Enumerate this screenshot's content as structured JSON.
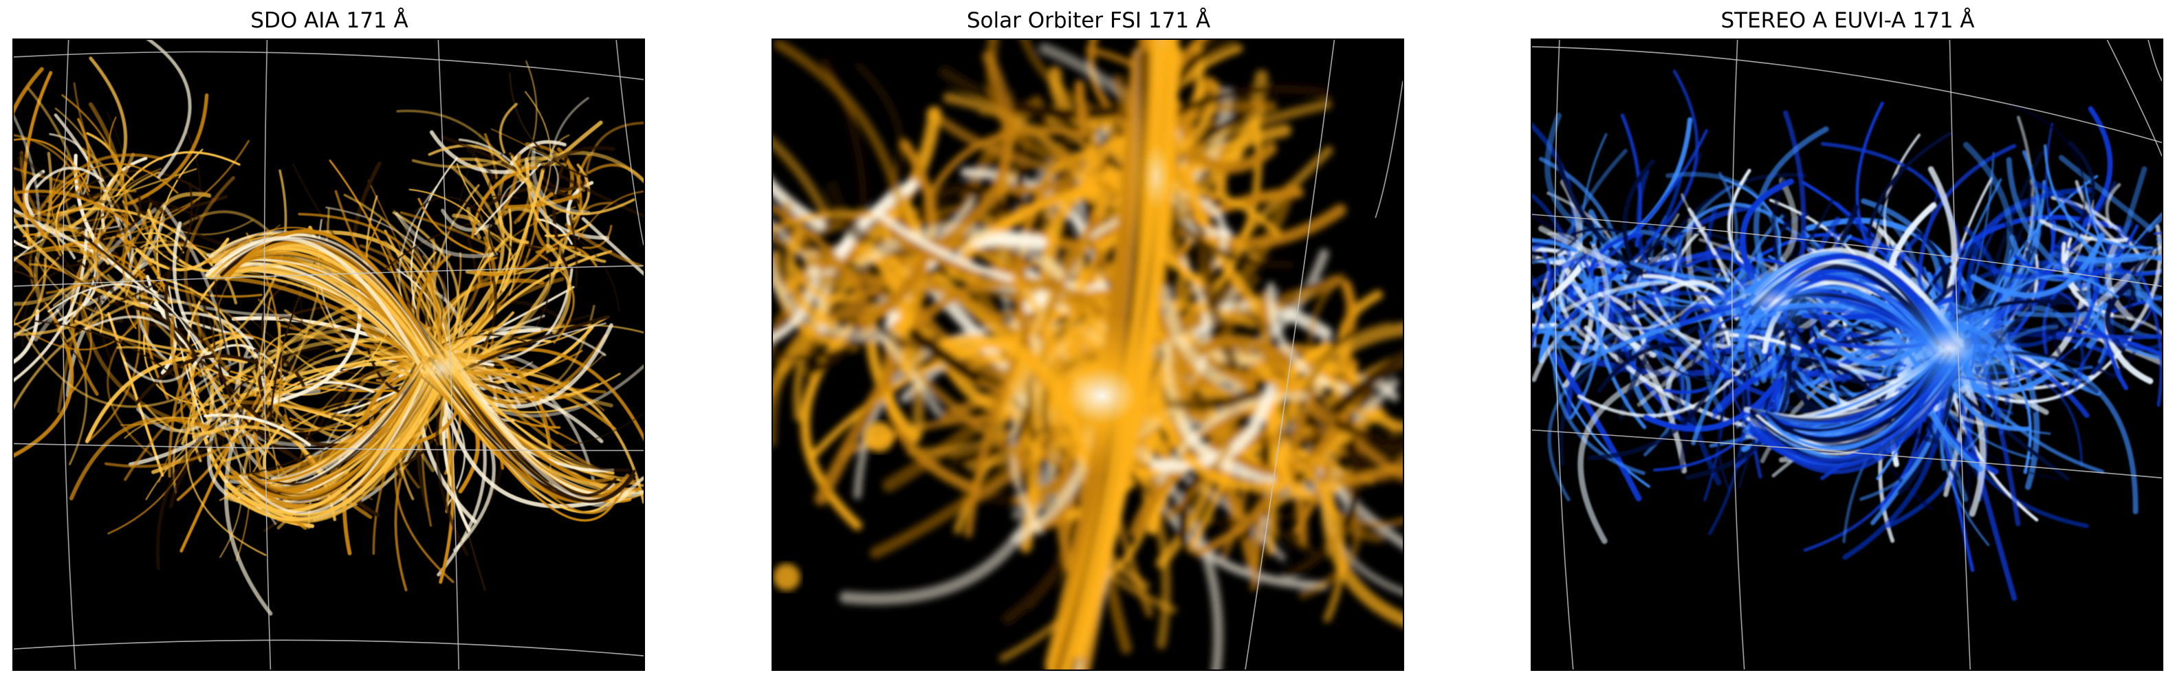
{
  "panels": [
    {
      "title": "SDO AIA 171 Å",
      "colormap": "sdoaia171",
      "colors": {
        "dark": "#2a1400",
        "mid": "#d08a10",
        "bright": "#ffc64a",
        "highlight": "#fff6dc"
      }
    },
    {
      "title": "Solar Orbiter FSI 171 Å",
      "colormap": "sdoaia171",
      "colors": {
        "dark": "#2a1400",
        "mid": "#c47f0a",
        "bright": "#ffb21a",
        "highlight": "#fff8e6"
      }
    },
    {
      "title": "STEREO A EUVI-A 171 Å",
      "colormap": "euvi171",
      "colors": {
        "dark": "#000a3a",
        "mid": "#0a3ad8",
        "bright": "#3c8cff",
        "highlight": "#e8f4ff"
      }
    }
  ]
}
